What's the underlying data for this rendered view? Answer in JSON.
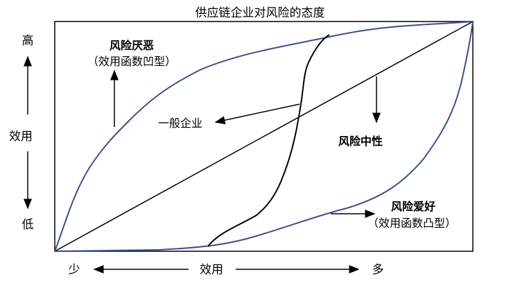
{
  "title": "供应链企业对风险的态度",
  "y_axis": {
    "high": "高",
    "label": "效用",
    "low": "低"
  },
  "x_axis": {
    "low": "少",
    "label": "效用",
    "high": "多"
  },
  "curves": {
    "risk_averse": {
      "label": "风险厌恶",
      "sublabel": "（效用函数凹型）",
      "color": "#3a4f8f"
    },
    "risk_neutral": {
      "label": "风险中性",
      "color": "#000000"
    },
    "risk_seeking": {
      "label": "风险爱好",
      "sublabel": "（效用函数凸型）",
      "color": "#3a4f8f"
    },
    "general": {
      "label": "一般企业",
      "color": "#000000"
    }
  }
}
